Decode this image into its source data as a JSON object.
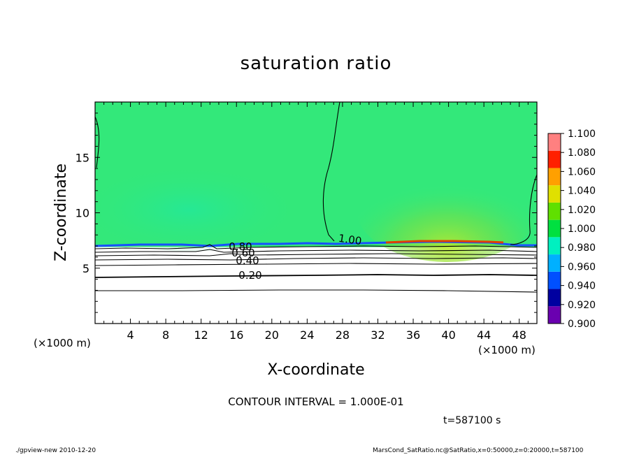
{
  "chart_data": {
    "type": "heatmap",
    "title": "saturation ratio",
    "xlabel": "X-coordinate",
    "ylabel": "Z-coordinate",
    "x_unit": "(×1000 m)",
    "y_unit": "(×1000 m)",
    "xlim": [
      0,
      50
    ],
    "ylim": [
      0,
      20
    ],
    "x_ticks": [
      4,
      8,
      12,
      16,
      20,
      24,
      28,
      32,
      36,
      40,
      44,
      48
    ],
    "y_ticks": [
      5,
      10,
      15
    ],
    "colorbar": {
      "levels": [
        0.9,
        0.92,
        0.94,
        0.96,
        0.98,
        1.0,
        1.02,
        1.04,
        1.06,
        1.08,
        1.1
      ],
      "labels": [
        "1.100",
        "1.080",
        "1.060",
        "1.040",
        "1.020",
        "1.000",
        "0.980",
        "0.960",
        "0.940",
        "0.920",
        "0.900"
      ],
      "colors": [
        "#6a00b0",
        "#0000a0",
        "#0050ff",
        "#00b0ff",
        "#00f0c0",
        "#00e040",
        "#60e000",
        "#e0e000",
        "#ffa000",
        "#ff2000",
        "#ff8080"
      ]
    },
    "fill_regions": [
      {
        "name": "saturated-air",
        "z_above": 6.9,
        "value": 0.99,
        "color": "#33e87a"
      },
      {
        "name": "subsaturated-layer",
        "z_below": 6.9,
        "value": 0.3,
        "color": "#ffffff"
      }
    ],
    "contours": [
      {
        "label": "1.00",
        "value": 1.0
      },
      {
        "label": "0.80",
        "value": 0.8
      },
      {
        "label": "0.60",
        "value": 0.6
      },
      {
        "label": "0.40",
        "value": 0.4
      },
      {
        "label": "0.20",
        "value": 0.2
      }
    ],
    "contour_interval": "CONTOUR INTERVAL = 1.000E-01",
    "time": "t=587100 s"
  },
  "footer": {
    "left": "./gpview-new   2010-12-20",
    "right": "MarsCond_SatRatio.nc@SatRatio,x=0:50000,z=0:20000,t=587100"
  }
}
